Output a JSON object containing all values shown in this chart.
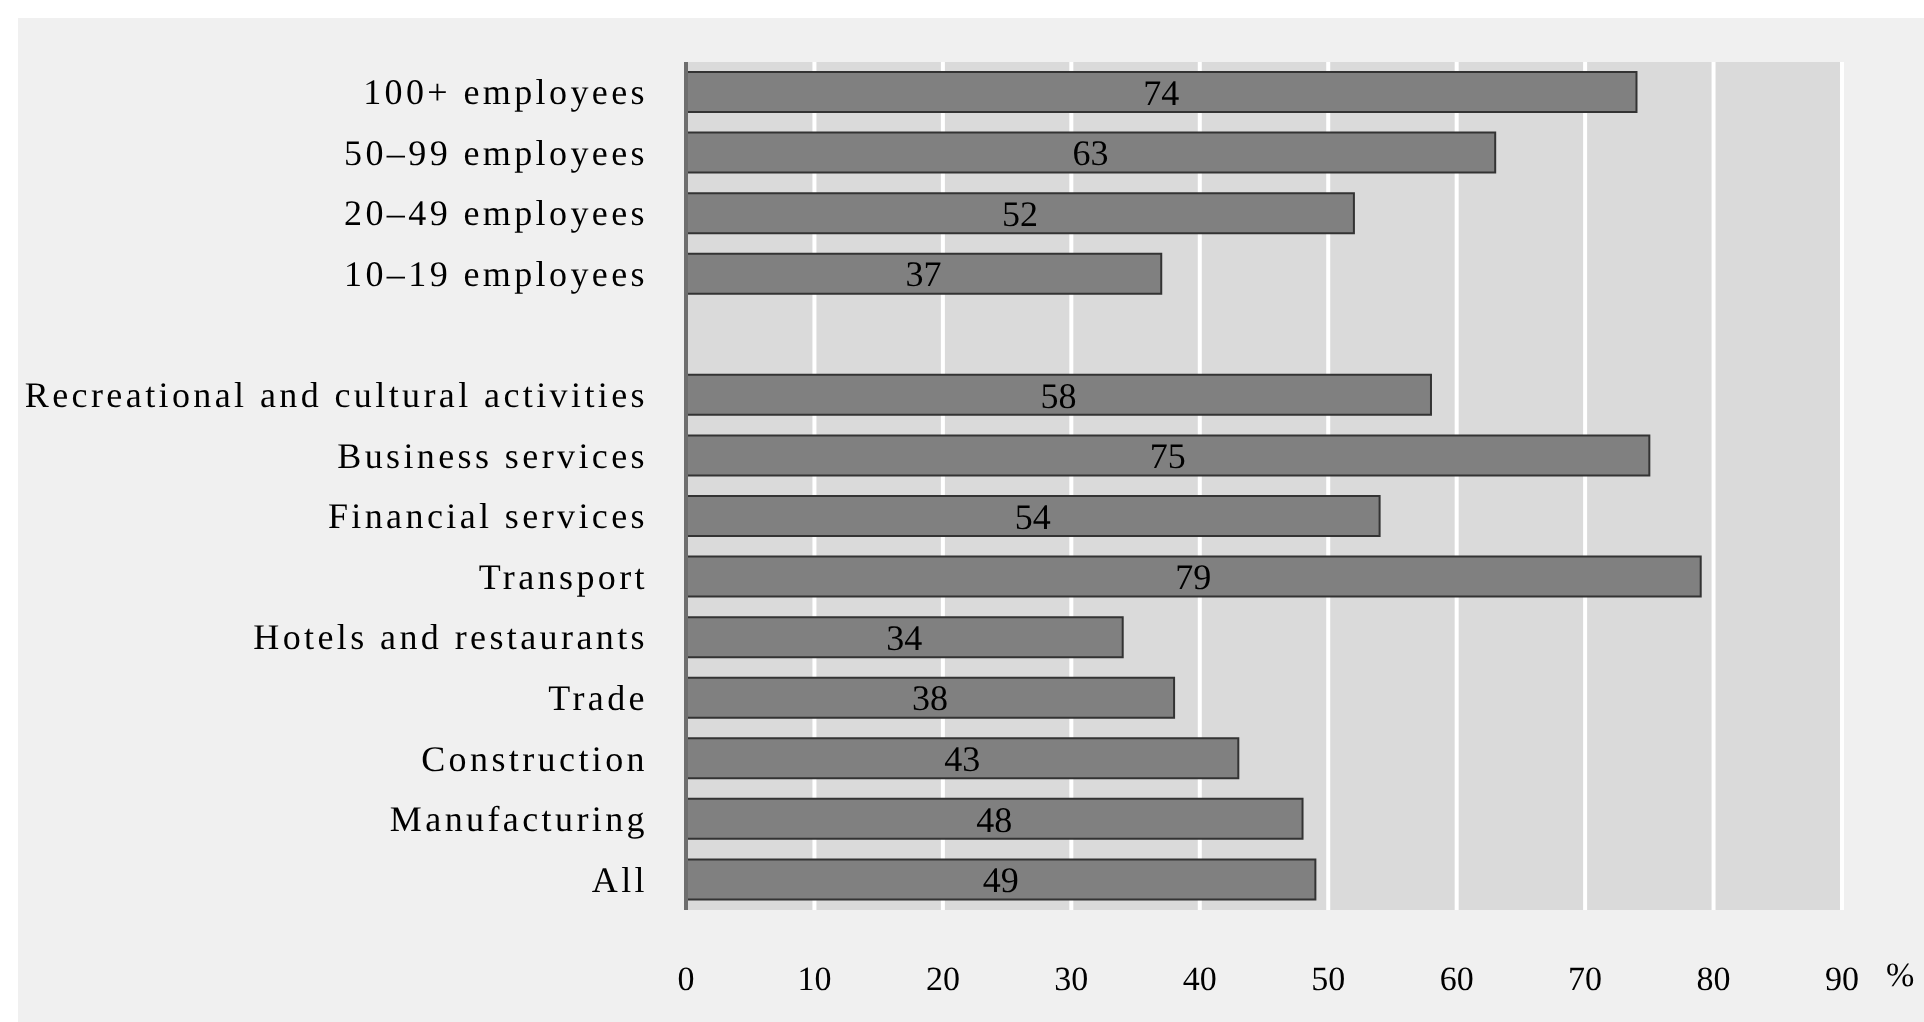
{
  "chart_data": {
    "type": "bar",
    "orientation": "horizontal",
    "categories": [
      "100+ employees",
      "50–99 employees",
      "20–49 employees",
      "10–19 employees",
      null,
      "Recreational and cultural activities",
      "Business services",
      "Financial services",
      "Transport",
      "Hotels and restaurants",
      "Trade",
      "Construction",
      "Manufacturing",
      "All"
    ],
    "values": [
      74,
      63,
      52,
      37,
      null,
      58,
      75,
      54,
      79,
      34,
      38,
      43,
      48,
      49
    ],
    "color": "#808080",
    "xlim": [
      0,
      90
    ],
    "xticks": [
      0,
      10,
      20,
      30,
      40,
      50,
      60,
      70,
      80,
      90
    ],
    "xlabel": "%",
    "grid": "x",
    "data_labels": true
  }
}
